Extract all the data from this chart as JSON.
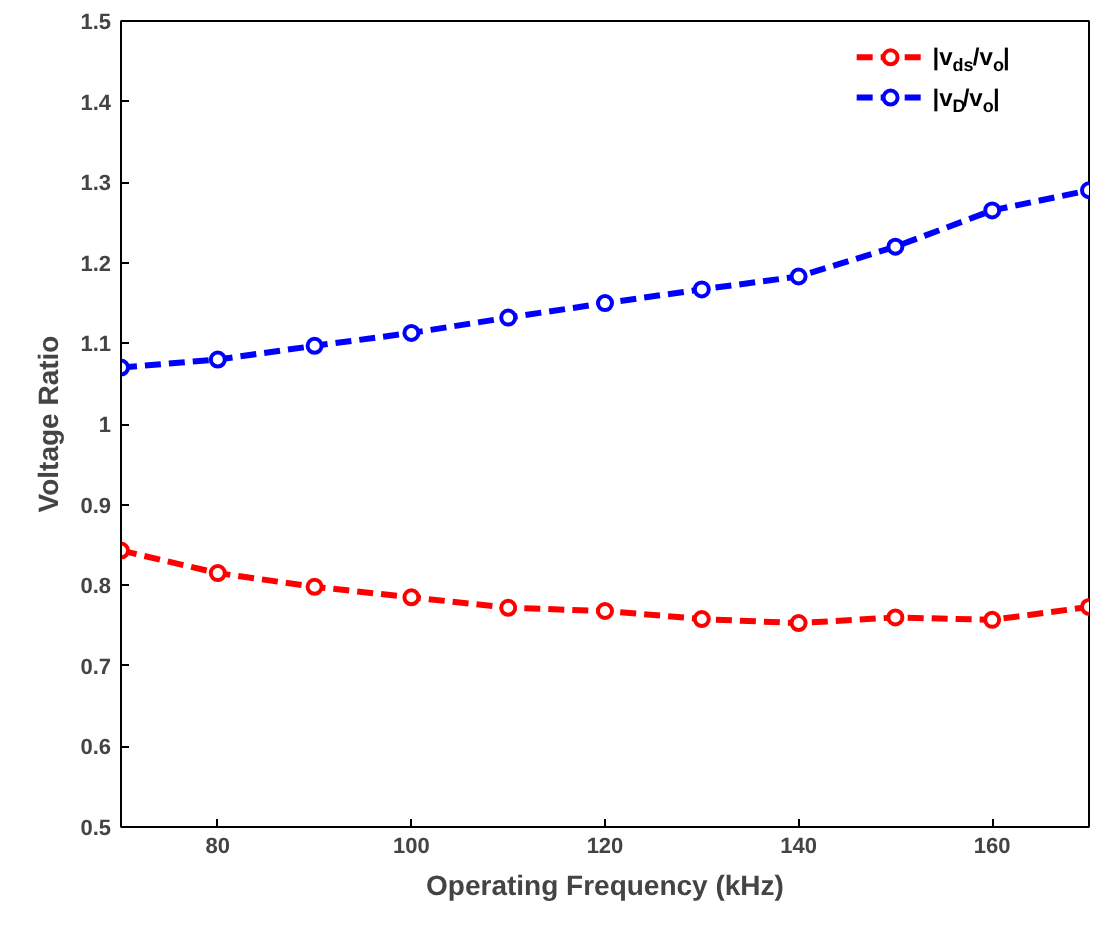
{
  "chart_data": {
    "type": "line",
    "xlabel": "Operating Frequency (kHz)",
    "ylabel": "Voltage Ratio",
    "x": [
      70,
      80,
      90,
      100,
      110,
      120,
      130,
      140,
      150,
      160,
      170
    ],
    "series": [
      {
        "name": "|v$_{ds}$/v$_{o}$|",
        "color": "#ff0000",
        "values": [
          0.843,
          0.815,
          0.798,
          0.785,
          0.772,
          0.768,
          0.758,
          0.753,
          0.76,
          0.757,
          0.773
        ]
      },
      {
        "name": "|v$_{D}$/v$_{o}$|",
        "color": "#0000ff",
        "values": [
          1.07,
          1.08,
          1.097,
          1.113,
          1.132,
          1.15,
          1.167,
          1.183,
          1.22,
          1.265,
          1.29
        ]
      }
    ],
    "xlim": [
      70,
      170
    ],
    "xticks": [
      80,
      100,
      120,
      140,
      160
    ],
    "ylim": [
      0.5,
      1.5
    ],
    "yticks": [
      0.5,
      0.6,
      0.7,
      0.8,
      0.9,
      1,
      1.1,
      1.2,
      1.3,
      1.4,
      1.5
    ],
    "grid": false,
    "legend": "top right",
    "marker": "circle",
    "line_style": "dashed"
  }
}
